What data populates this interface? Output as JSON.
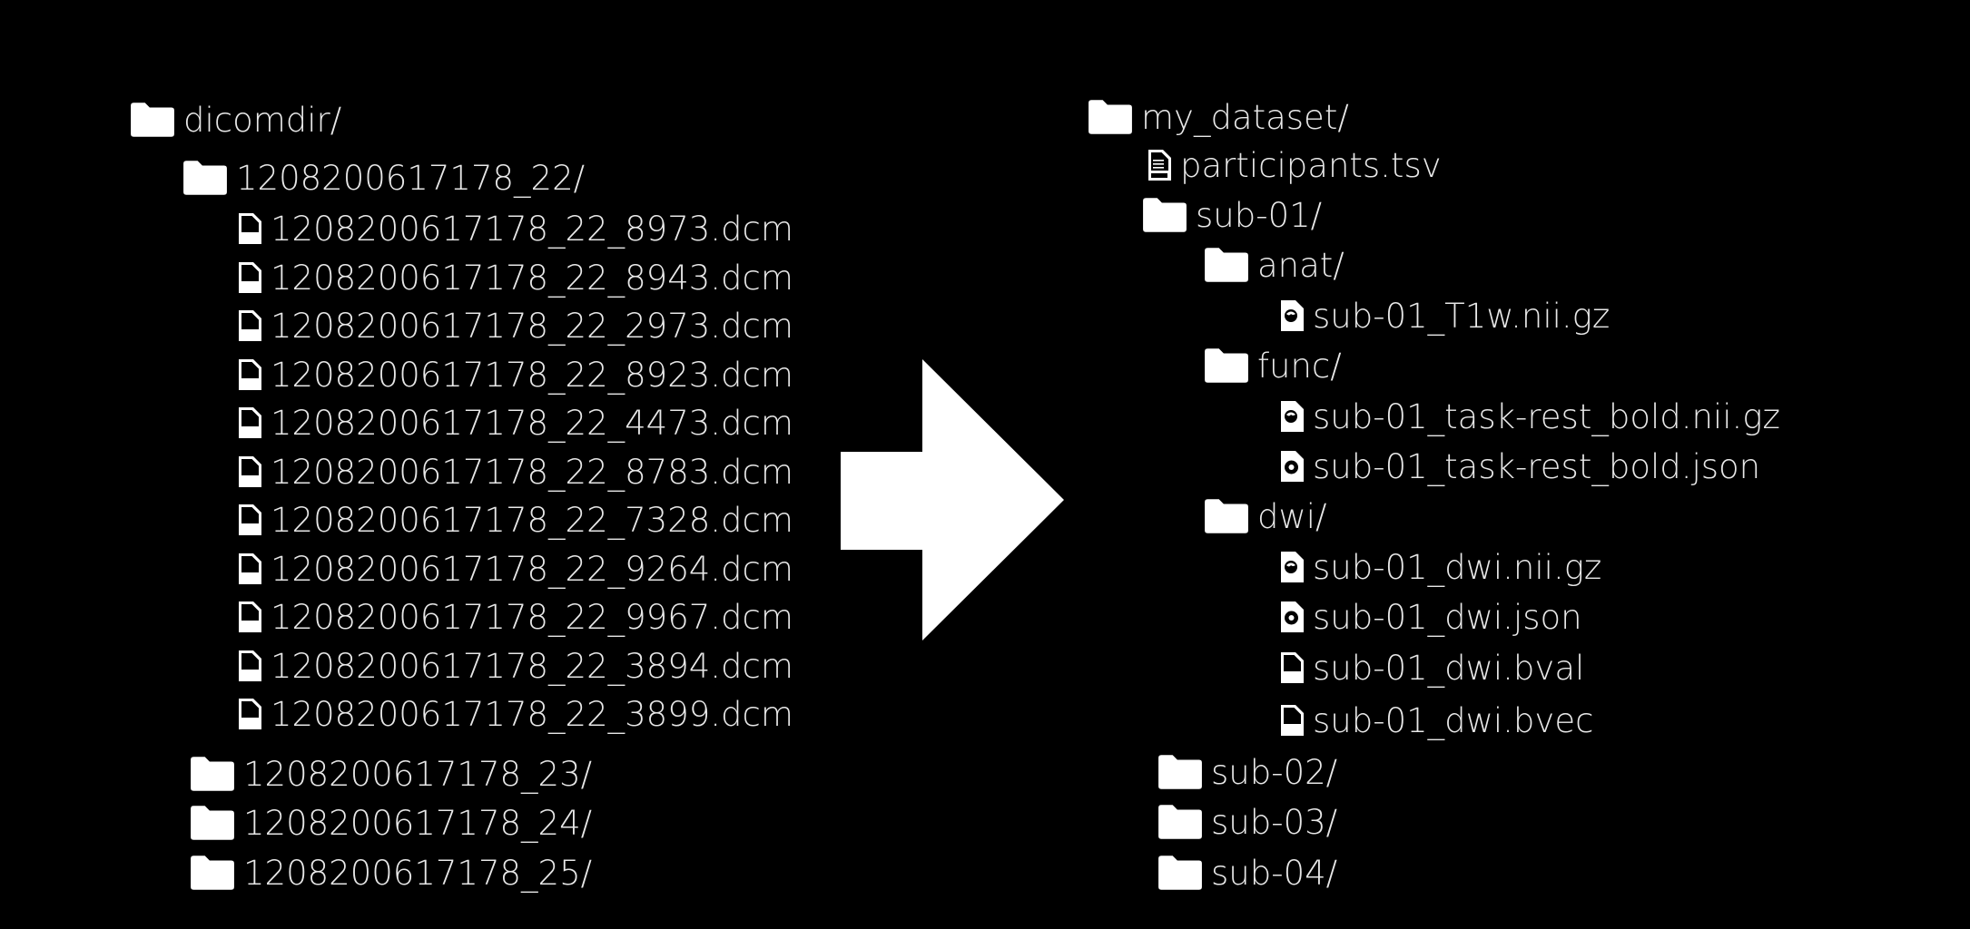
{
  "colors": {
    "background": "#000000",
    "text": "#e8e8e8",
    "icon": "#ffffff"
  },
  "left_tree": {
    "root": {
      "label": "dicomdir/",
      "icon": "folder-icon"
    },
    "series_22": {
      "label": "1208200617178_22/",
      "icon": "folder-icon"
    },
    "files": [
      "1208200617178_22_8973.dcm",
      "1208200617178_22_8943.dcm",
      "1208200617178_22_2973.dcm",
      "1208200617178_22_8923.dcm",
      "1208200617178_22_4473.dcm",
      "1208200617178_22_8783.dcm",
      "1208200617178_22_7328.dcm",
      "1208200617178_22_9264.dcm",
      "1208200617178_22_9967.dcm",
      "1208200617178_22_3894.dcm",
      "1208200617178_22_3899.dcm"
    ],
    "other_series": [
      "1208200617178_23/",
      "1208200617178_24/",
      "1208200617178_25/"
    ]
  },
  "arrow": {
    "icon": "right-arrow-icon"
  },
  "right_tree": {
    "root": {
      "label": "my_dataset/",
      "icon": "folder-icon"
    },
    "participants": {
      "label": "participants.tsv",
      "icon": "tsv-file-icon"
    },
    "subject": {
      "label": "sub-01/",
      "icon": "folder-icon"
    },
    "anat": {
      "label": "anat/",
      "icon": "folder-icon"
    },
    "anat_files": [
      "sub-01_T1w.nii.gz"
    ],
    "func": {
      "label": "func/",
      "icon": "folder-icon"
    },
    "func_files": [
      "sub-01_task-rest_bold.nii.gz",
      "sub-01_task-rest_bold.json"
    ],
    "dwi": {
      "label": "dwi/",
      "icon": "folder-icon"
    },
    "dwi_files": [
      "sub-01_dwi.nii.gz",
      "sub-01_dwi.json",
      "sub-01_dwi.bval",
      "sub-01_dwi.bvec"
    ],
    "other_subjects": [
      "sub-02/",
      "sub-03/",
      "sub-04/"
    ]
  }
}
